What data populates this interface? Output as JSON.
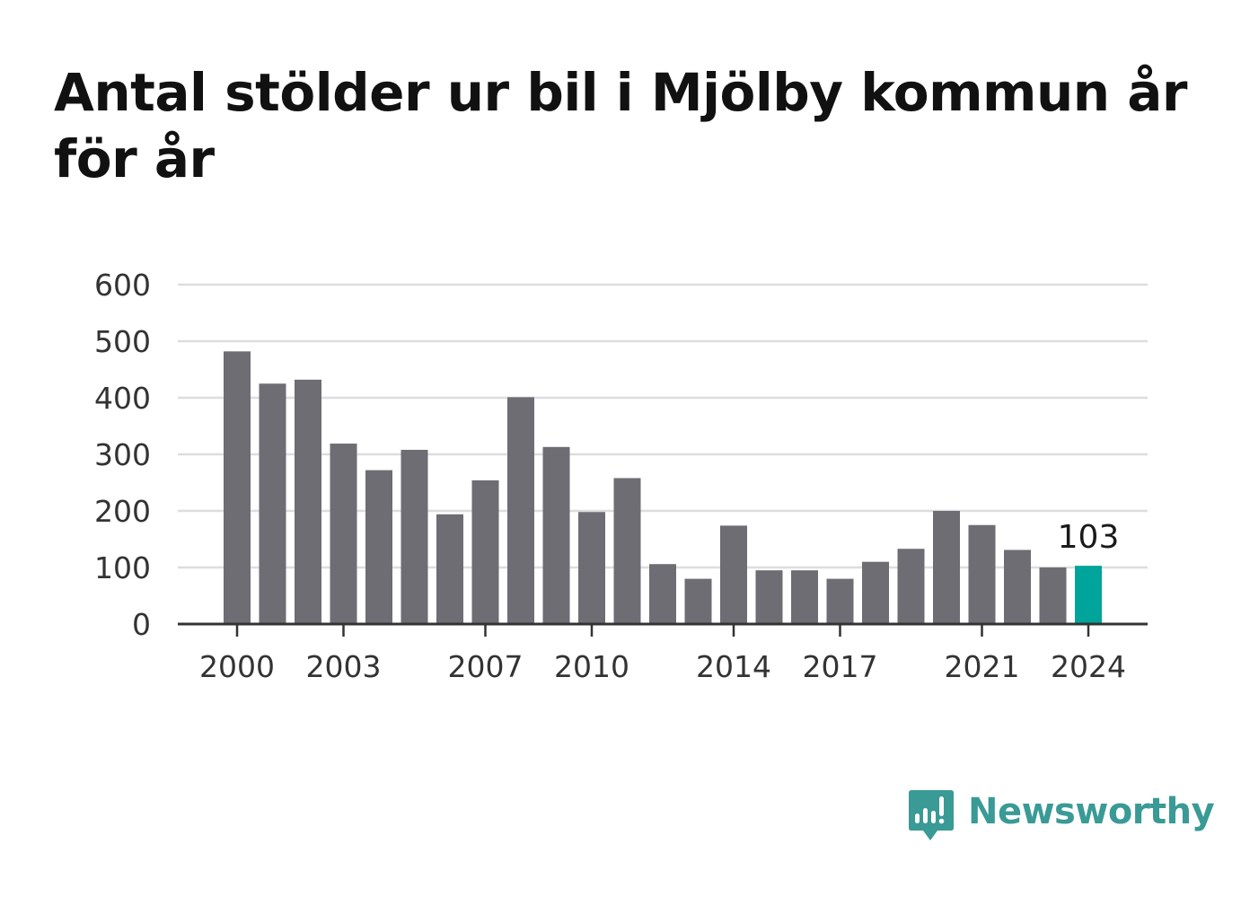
{
  "title": "Antal stölder ur bil i Mjölby kommun år för år",
  "brand": {
    "name": "Newsworthy",
    "icon": "newsworthy-logo-icon"
  },
  "colors": {
    "bar": "#6e6d74",
    "highlight": "#00a49a",
    "grid": "#dddddd",
    "axis": "#333333",
    "brand": "#3a9a95"
  },
  "chart_data": {
    "type": "bar",
    "title": "Antal stölder ur bil i Mjölby kommun år för år",
    "xlabel": "",
    "ylabel": "",
    "categories": [
      2000,
      2001,
      2002,
      2003,
      2004,
      2005,
      2006,
      2007,
      2008,
      2009,
      2010,
      2011,
      2012,
      2013,
      2014,
      2015,
      2016,
      2017,
      2018,
      2019,
      2020,
      2021,
      2022,
      2023,
      2024
    ],
    "values": [
      482,
      425,
      432,
      319,
      272,
      308,
      194,
      254,
      401,
      313,
      198,
      258,
      106,
      80,
      174,
      95,
      95,
      80,
      110,
      133,
      200,
      175,
      131,
      100,
      103
    ],
    "x_tick_labels": [
      "2000",
      "2003",
      "2007",
      "2010",
      "2014",
      "2017",
      "2021",
      "2024"
    ],
    "y_ticks": [
      0,
      100,
      200,
      300,
      400,
      500,
      600
    ],
    "ylim": [
      0,
      600
    ],
    "grid": true,
    "highlight": {
      "category": 2024,
      "label": "103"
    }
  }
}
